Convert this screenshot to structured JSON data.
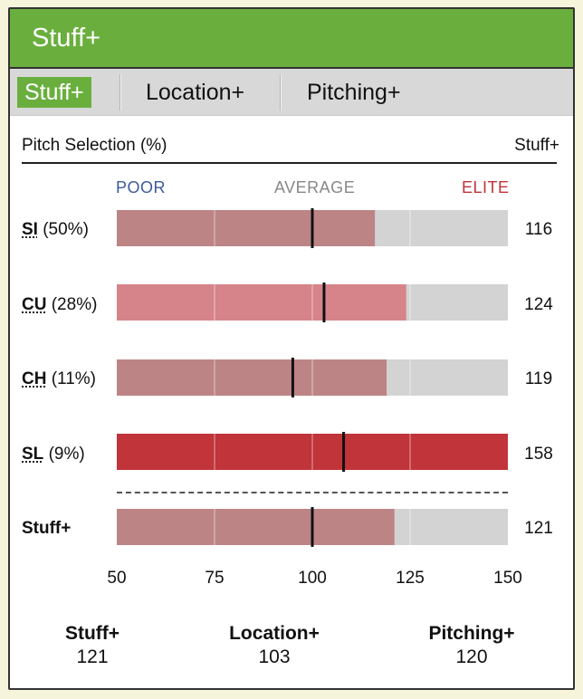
{
  "header": {
    "title": "Stuff+"
  },
  "tabs": [
    {
      "label": "Stuff+",
      "active": true
    },
    {
      "label": "Location+",
      "active": false
    },
    {
      "label": "Pitching+",
      "active": false
    }
  ],
  "table": {
    "left_header": "Pitch Selection (%)",
    "right_header": "Stuff+"
  },
  "scale_labels": {
    "poor": "POOR",
    "average": "AVERAGE",
    "elite": "ELITE"
  },
  "colors": {
    "accent": "#6aaf3e",
    "poor_label": "#3c5a9a",
    "average_label": "#888888",
    "elite_label": "#c0323a",
    "track": "#d3d3d3",
    "bar_near_avg": "#bd8486",
    "bar_good": "#d6838a",
    "bar_elite": "#c0343a",
    "marker": "#111111"
  },
  "chart_data": {
    "type": "bar",
    "orientation": "horizontal",
    "xlim": [
      50,
      150
    ],
    "ticks": [
      "50",
      "75",
      "100",
      "125",
      "150"
    ],
    "grid": true,
    "rows": [
      {
        "abbr": "SI",
        "pct": "(50%)",
        "value": 116,
        "value_label": "116",
        "marker": 100,
        "color": "bar_near_avg"
      },
      {
        "abbr": "CU",
        "pct": "(28%)",
        "value": 124,
        "value_label": "124",
        "marker": 103,
        "color": "bar_good"
      },
      {
        "abbr": "CH",
        "pct": "(11%)",
        "value": 119,
        "value_label": "119",
        "marker": 95,
        "color": "bar_near_avg"
      },
      {
        "abbr": "SL",
        "pct": "(9%)",
        "value": 158,
        "value_label": "158",
        "marker": 108,
        "color": "bar_elite"
      },
      {
        "abbr": "Stuff+",
        "pct": "",
        "value": 121,
        "value_label": "121",
        "marker": 100,
        "color": "bar_near_avg",
        "summary": true
      }
    ]
  },
  "summary": [
    {
      "name": "Stuff+",
      "value": "121"
    },
    {
      "name": "Location+",
      "value": "103"
    },
    {
      "name": "Pitching+",
      "value": "120"
    }
  ]
}
